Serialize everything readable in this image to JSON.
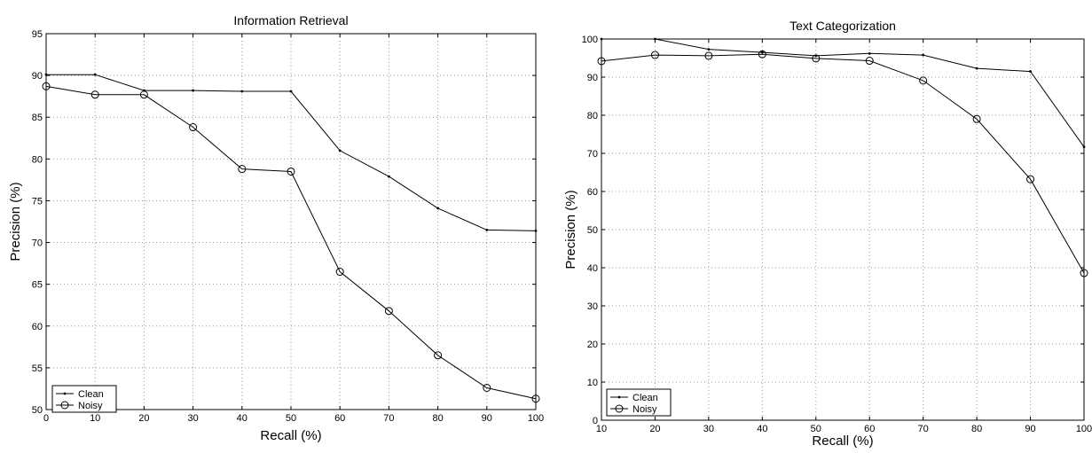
{
  "chart_data": [
    {
      "type": "line",
      "title": "Information Retrieval",
      "xlabel": "Recall (%)",
      "ylabel": "Precision (%)",
      "xlim": [
        0,
        100
      ],
      "ylim": [
        50,
        95
      ],
      "xticks": [
        0,
        10,
        20,
        30,
        40,
        50,
        60,
        70,
        80,
        90,
        100
      ],
      "yticks": [
        50,
        55,
        60,
        65,
        70,
        75,
        80,
        85,
        90,
        95
      ],
      "grid": true,
      "legend_position": "bottom-left",
      "series": [
        {
          "name": "Clean",
          "marker": "dot",
          "x": [
            0,
            10,
            20,
            30,
            40,
            50,
            60,
            70,
            80,
            90,
            100
          ],
          "y": [
            90.1,
            90.1,
            88.2,
            88.2,
            88.1,
            88.1,
            81.0,
            77.9,
            74.1,
            71.5,
            71.4
          ]
        },
        {
          "name": "Noisy",
          "marker": "circle",
          "x": [
            0,
            10,
            20,
            30,
            40,
            50,
            60,
            70,
            80,
            90,
            100
          ],
          "y": [
            88.7,
            87.7,
            87.7,
            83.8,
            78.8,
            78.5,
            66.5,
            61.8,
            56.5,
            52.6,
            51.3
          ]
        }
      ]
    },
    {
      "type": "line",
      "title": "Text Categorization",
      "xlabel": "Recall (%)",
      "ylabel": "Precision (%)",
      "xlim": [
        10,
        100
      ],
      "ylim": [
        0,
        100
      ],
      "xticks": [
        10,
        20,
        30,
        40,
        50,
        60,
        70,
        80,
        90,
        100
      ],
      "yticks": [
        0,
        10,
        20,
        30,
        40,
        50,
        60,
        70,
        80,
        90,
        100
      ],
      "grid": true,
      "legend_position": "bottom-left",
      "series": [
        {
          "name": "Clean",
          "marker": "dot",
          "x": [
            10,
            20,
            30,
            40,
            50,
            60,
            70,
            80,
            90,
            100
          ],
          "y": [
            100,
            100,
            97.3,
            96.5,
            95.6,
            96.2,
            95.8,
            92.3,
            91.5,
            71.7
          ]
        },
        {
          "name": "Noisy",
          "marker": "circle",
          "x": [
            10,
            20,
            30,
            40,
            50,
            60,
            70,
            80,
            90,
            100
          ],
          "y": [
            94.2,
            95.8,
            95.6,
            96.0,
            94.9,
            94.3,
            89.1,
            79.0,
            63.2,
            38.6
          ]
        }
      ]
    }
  ]
}
